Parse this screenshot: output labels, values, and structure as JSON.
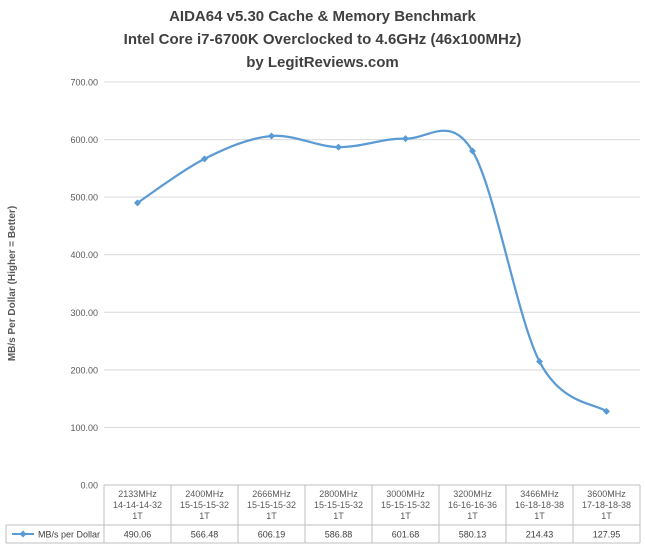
{
  "chart_data": {
    "type": "line",
    "title_lines": [
      "AIDA64 v5.30 Cache & Memory Benchmark",
      "Intel Core i7-6700K Overclocked to 4.6GHz (46x100MHz)",
      "by LegitReviews.com"
    ],
    "ylabel": "MB/s Per Dollar  (Higher = Better)",
    "ylim": [
      0,
      700
    ],
    "yticks": [
      "0.00",
      "100.00",
      "200.00",
      "300.00",
      "400.00",
      "500.00",
      "600.00",
      "700.00"
    ],
    "categories": [
      [
        "2133MHz",
        "14-14-14-32",
        "1T"
      ],
      [
        "2400MHz",
        "15-15-15-32",
        "1T"
      ],
      [
        "2666MHz",
        "15-15-15-32",
        "1T"
      ],
      [
        "2800MHz",
        "15-15-15-32",
        "1T"
      ],
      [
        "3000MHz",
        "15-15-15-32",
        "1T"
      ],
      [
        "3200MHz",
        "16-16-16-36",
        "1T"
      ],
      [
        "3466MHz",
        "16-18-18-38",
        "1T"
      ],
      [
        "3600MHz",
        "17-18-18-38",
        "1T"
      ]
    ],
    "series": [
      {
        "name": "MB/s per Dollar",
        "values": [
          490.06,
          566.48,
          606.19,
          586.88,
          601.68,
          580.13,
          214.43,
          127.95
        ],
        "value_labels": [
          "490.06",
          "566.48",
          "606.19",
          "586.88",
          "601.68",
          "580.13",
          "214.43",
          "127.95"
        ],
        "color": "#5B9BD5"
      }
    ],
    "grid": true,
    "legend": "data-table-row",
    "gridline_color": "#d9d9d9",
    "axis_color": "#bfbfbf"
  }
}
